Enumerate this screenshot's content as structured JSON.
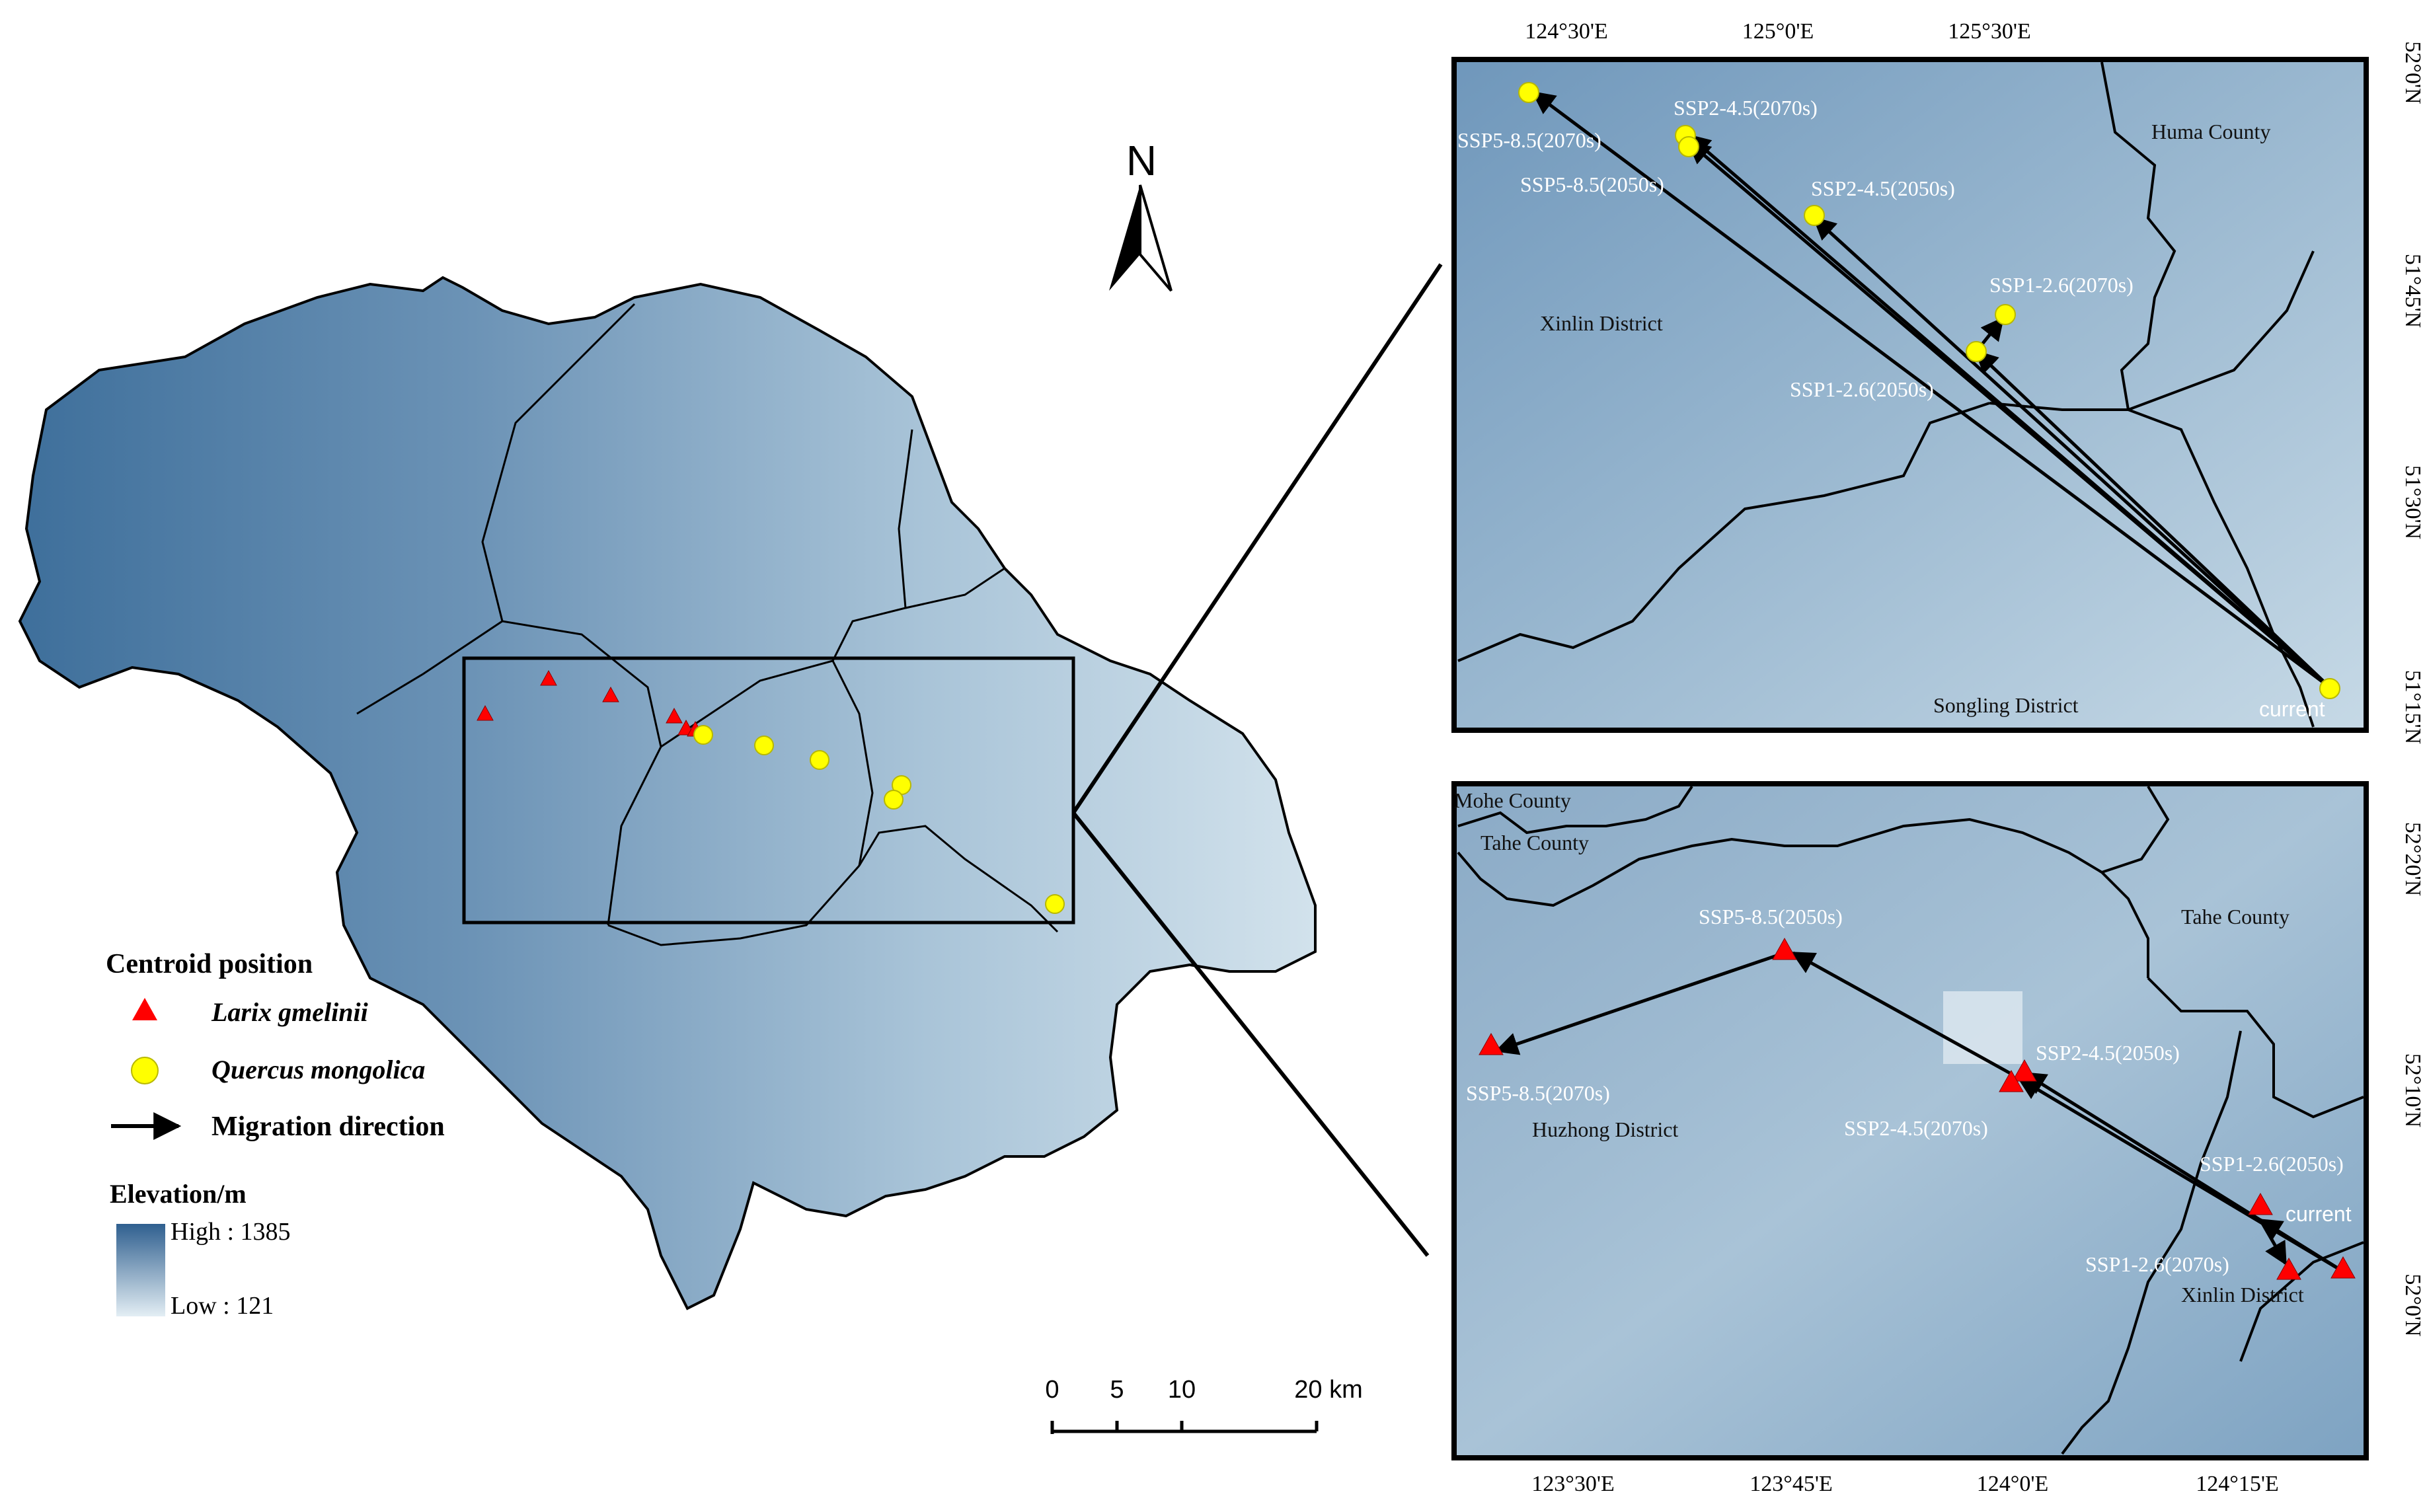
{
  "north_arrow": {
    "label": "N"
  },
  "legend": {
    "title": "Centroid position",
    "larix": "Larix gmelinii",
    "quercus": "Quercus mongolica",
    "migration": "Migration direction",
    "elev_title": "Elevation/m",
    "high": "High : 1385",
    "low": "Low : 121"
  },
  "scale_bar": {
    "labels": [
      "0",
      "5",
      "10",
      "20 km"
    ]
  },
  "colors": {
    "larix": "#ff0000",
    "quercus": "#ffff00",
    "elev_high": "#2f5f8f",
    "elev_low": "#e3eef4",
    "frame": "#000000"
  },
  "top_inset": {
    "x_ticks": [
      "124°30'E",
      "125°0'E",
      "125°30'E"
    ],
    "y_ticks": [
      "52°0'N",
      "51°45'N",
      "51°30'N",
      "51°15'N"
    ],
    "regions": [
      "Huma County",
      "Xinlin District",
      "Songling District"
    ],
    "points": [
      "SSP5-8.5(2070s)",
      "SSP2-4.5(2070s)",
      "SSP5-8.5(2050s)",
      "SSP2-4.5(2050s)",
      "SSP1-2.6(2070s)",
      "SSP1-2.6(2050s)",
      "current"
    ]
  },
  "bottom_inset": {
    "x_ticks": [
      "123°30'E",
      "123°45'E",
      "124°0'E",
      "124°15'E"
    ],
    "y_ticks": [
      "52°20'N",
      "52°10'N",
      "52°0'N"
    ],
    "regions": [
      "Mohe County",
      "Tahe County",
      "Tahe County",
      "Huzhong District",
      "Xinlin District"
    ],
    "points": [
      "SSP5-8.5(2050s)",
      "SSP5-8.5(2070s)",
      "SSP2-4.5(2050s)",
      "SSP2-4.5(2070s)",
      "SSP1-2.6(2050s)",
      "current",
      "SSP1-2.6(2070s)"
    ]
  }
}
